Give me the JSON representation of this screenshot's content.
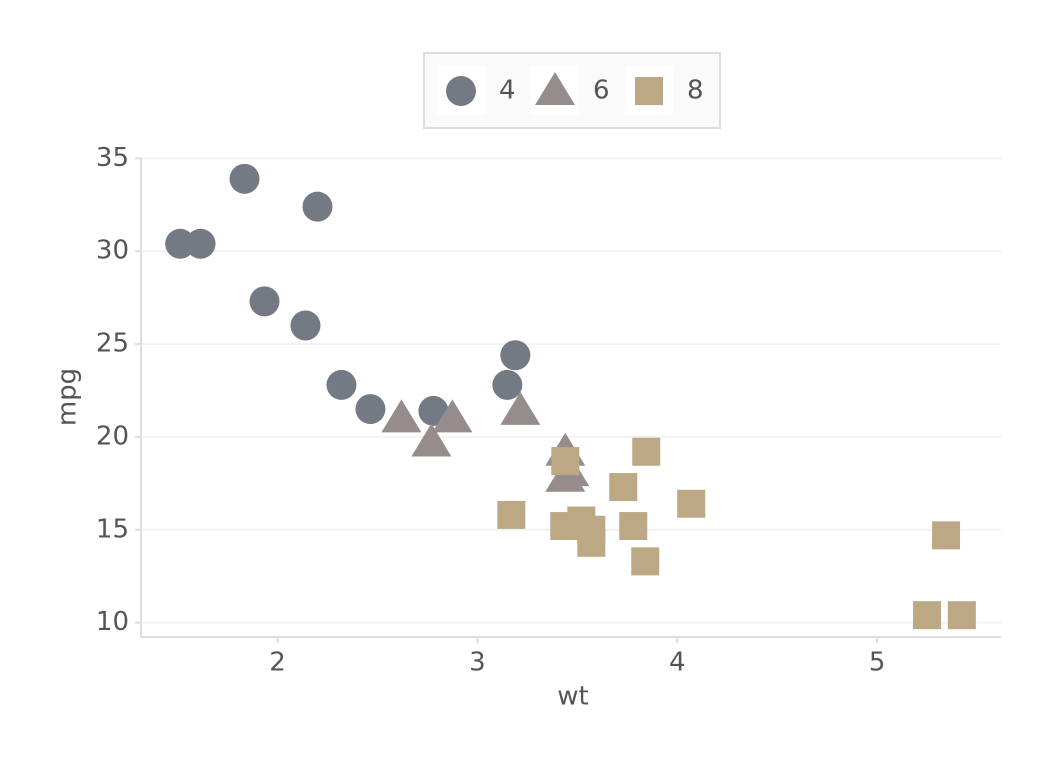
{
  "chart_data": {
    "type": "scatter",
    "x_label": "wt",
    "y_label": "mpg",
    "xlim": [
      1.317,
      5.62
    ],
    "ylim": [
      9.225,
      35.075
    ],
    "xticks": [
      2,
      3,
      4,
      5
    ],
    "yticks": [
      10,
      15,
      20,
      25,
      30,
      35
    ],
    "grid": "y",
    "legend": "top",
    "series": [
      {
        "name": "4",
        "color": "#747a84",
        "marker": "circle",
        "x": [
          2.32,
          3.19,
          3.15,
          2.2,
          1.615,
          1.835,
          2.465,
          1.935,
          2.14,
          1.513,
          2.78
        ],
        "values": [
          22.8,
          24.4,
          22.8,
          32.4,
          30.4,
          33.9,
          21.5,
          27.3,
          26.0,
          30.4,
          21.4
        ]
      },
      {
        "name": "6",
        "color": "#968c8c",
        "marker": "triangle",
        "x": [
          2.62,
          2.875,
          3.215,
          3.46,
          3.44,
          3.44,
          2.77
        ],
        "values": [
          21.0,
          21.0,
          21.4,
          18.1,
          19.2,
          17.8,
          19.7
        ]
      },
      {
        "name": "8",
        "color": "#bca884",
        "marker": "square",
        "x": [
          3.44,
          3.57,
          4.07,
          3.73,
          3.78,
          5.25,
          5.424,
          5.345,
          3.52,
          3.435,
          3.84,
          3.845,
          3.17,
          3.57
        ],
        "values": [
          18.7,
          14.3,
          16.4,
          17.3,
          15.2,
          10.4,
          10.4,
          14.7,
          15.5,
          15.2,
          13.3,
          19.2,
          15.8,
          15.0
        ]
      }
    ]
  }
}
